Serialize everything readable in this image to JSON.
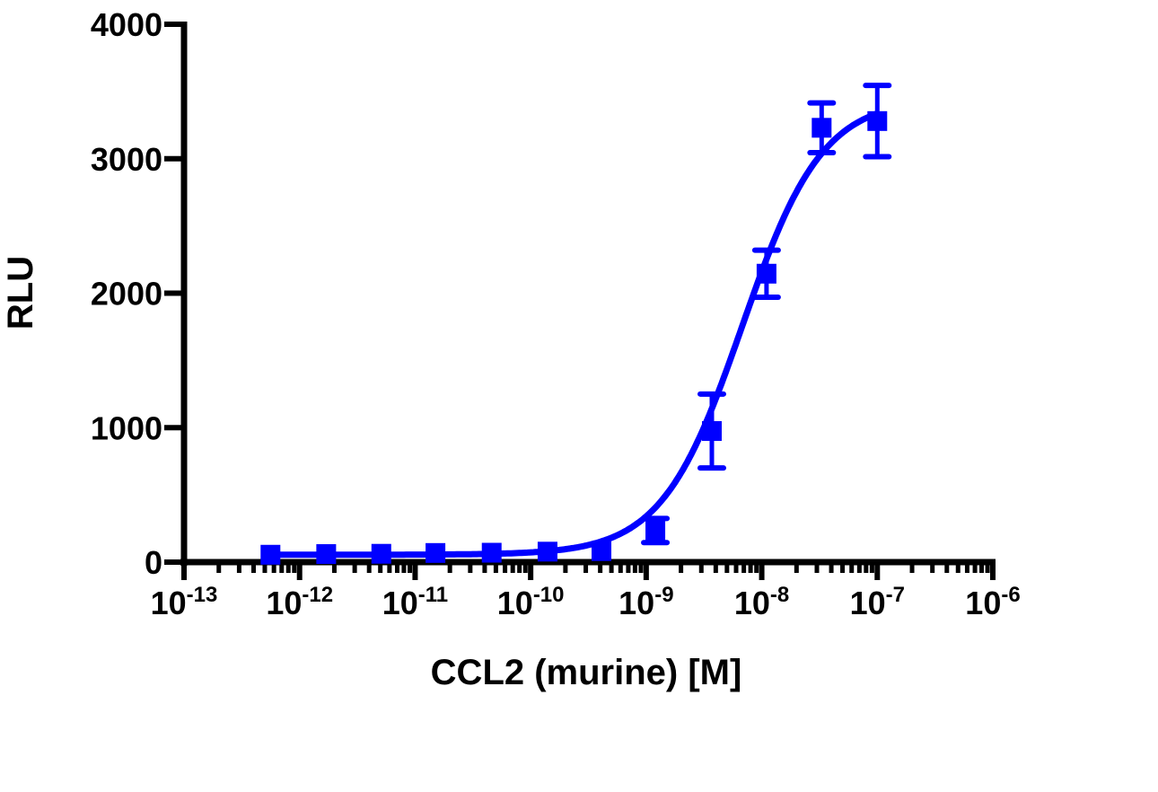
{
  "chart_data": {
    "type": "scatter",
    "xlabel": "CCL2 (murine) [M]",
    "ylabel": "RLU",
    "xscale": "log",
    "xlim": [
      1e-13,
      1e-06
    ],
    "ylim": [
      0,
      4000
    ],
    "x_tick_labels": [
      {
        "base": "10",
        "exp": "-13"
      },
      {
        "base": "10",
        "exp": "-12"
      },
      {
        "base": "10",
        "exp": "-11"
      },
      {
        "base": "10",
        "exp": "-10"
      },
      {
        "base": "10",
        "exp": "-9"
      },
      {
        "base": "10",
        "exp": "-8"
      },
      {
        "base": "10",
        "exp": "-7"
      },
      {
        "base": "10",
        "exp": "-6"
      }
    ],
    "y_ticks": [
      0,
      1000,
      2000,
      3000,
      4000
    ],
    "y_tick_labels": [
      "0",
      "1000",
      "2000",
      "3000",
      "4000"
    ],
    "grid": false,
    "color": "#0000ff",
    "series": [
      {
        "marker": "square",
        "x": [
          5.6e-13,
          1.7e-12,
          5.1e-12,
          1.5e-11,
          4.6e-11,
          1.4e-10,
          4.1e-10,
          1.2e-09,
          3.7e-09,
          1.1e-08,
          3.3e-08,
          1e-07
        ],
        "y": [
          55,
          60,
          62,
          68,
          70,
          78,
          82,
          235,
          975,
          2145,
          3230,
          3280
        ],
        "error": [
          0,
          0,
          0,
          0,
          0,
          0,
          0,
          90,
          275,
          175,
          185,
          265
        ]
      }
    ],
    "fit": {
      "model": "four-parameter logistic",
      "bottom": 55,
      "top": 3450,
      "log_ec50": -8.17,
      "hill": 1.25
    }
  }
}
